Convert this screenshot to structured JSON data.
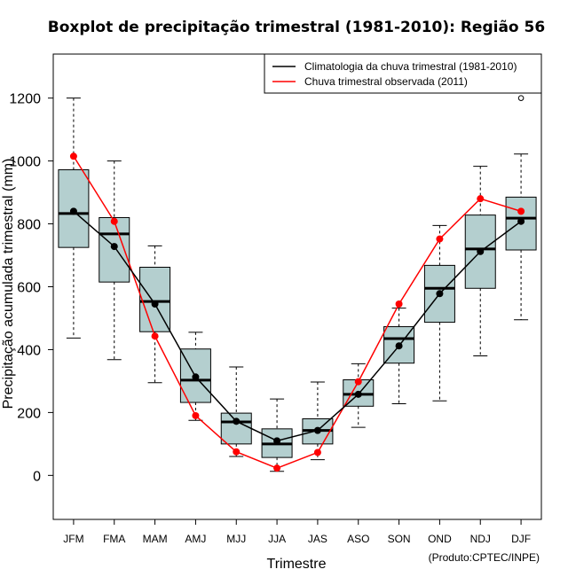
{
  "chart_data": {
    "type": "boxplot",
    "title": "Boxplot de precipitação trimestral (1981-2010): Região 56",
    "xlabel": "Trimestre",
    "ylabel": "Precipitação acumulada trimestral (mm)",
    "credit": "(Produto:CPTEC/INPE)",
    "ylim": [
      -140,
      1340
    ],
    "yticks": [
      0,
      200,
      400,
      600,
      800,
      1000,
      1200
    ],
    "categories": [
      "JFM",
      "FMA",
      "MAM",
      "AMJ",
      "MJJ",
      "JJA",
      "JAS",
      "ASO",
      "SON",
      "OND",
      "NDJ",
      "DJF"
    ],
    "boxes": [
      {
        "min": 437,
        "q1": 725,
        "median": 833,
        "q3": 972,
        "max": 1200,
        "outliers": []
      },
      {
        "min": 368,
        "q1": 615,
        "median": 768,
        "q3": 820,
        "max": 1000,
        "outliers": []
      },
      {
        "min": 295,
        "q1": 457,
        "median": 553,
        "q3": 662,
        "max": 730,
        "outliers": []
      },
      {
        "min": 175,
        "q1": 232,
        "median": 303,
        "q3": 402,
        "max": 455,
        "outliers": []
      },
      {
        "min": 60,
        "q1": 100,
        "median": 170,
        "q3": 198,
        "max": 345,
        "outliers": []
      },
      {
        "min": 13,
        "q1": 57,
        "median": 100,
        "q3": 148,
        "max": 243,
        "outliers": []
      },
      {
        "min": 50,
        "q1": 100,
        "median": 143,
        "q3": 180,
        "max": 297,
        "outliers": []
      },
      {
        "min": 153,
        "q1": 220,
        "median": 258,
        "q3": 304,
        "max": 355,
        "outliers": []
      },
      {
        "min": 228,
        "q1": 357,
        "median": 435,
        "q3": 473,
        "max": 532,
        "outliers": []
      },
      {
        "min": 237,
        "q1": 487,
        "median": 595,
        "q3": 668,
        "max": 795,
        "outliers": []
      },
      {
        "min": 380,
        "q1": 595,
        "median": 720,
        "q3": 828,
        "max": 983,
        "outliers": []
      },
      {
        "min": 495,
        "q1": 717,
        "median": 818,
        "q3": 885,
        "max": 1022,
        "outliers": [
          1200
        ]
      }
    ],
    "series": [
      {
        "name": "Climatologia da chuva trimestral (1981-2010)",
        "color": "#000000",
        "values": [
          840,
          728,
          545,
          313,
          172,
          110,
          143,
          258,
          412,
          578,
          712,
          808
        ]
      },
      {
        "name": "Chuva trimestral observada (2011)",
        "color": "#ff0000",
        "values": [
          1015,
          808,
          443,
          190,
          75,
          23,
          73,
          298,
          545,
          752,
          880,
          840
        ]
      }
    ],
    "legend_position": "top-right",
    "box_fill": "#b4cfcf"
  }
}
